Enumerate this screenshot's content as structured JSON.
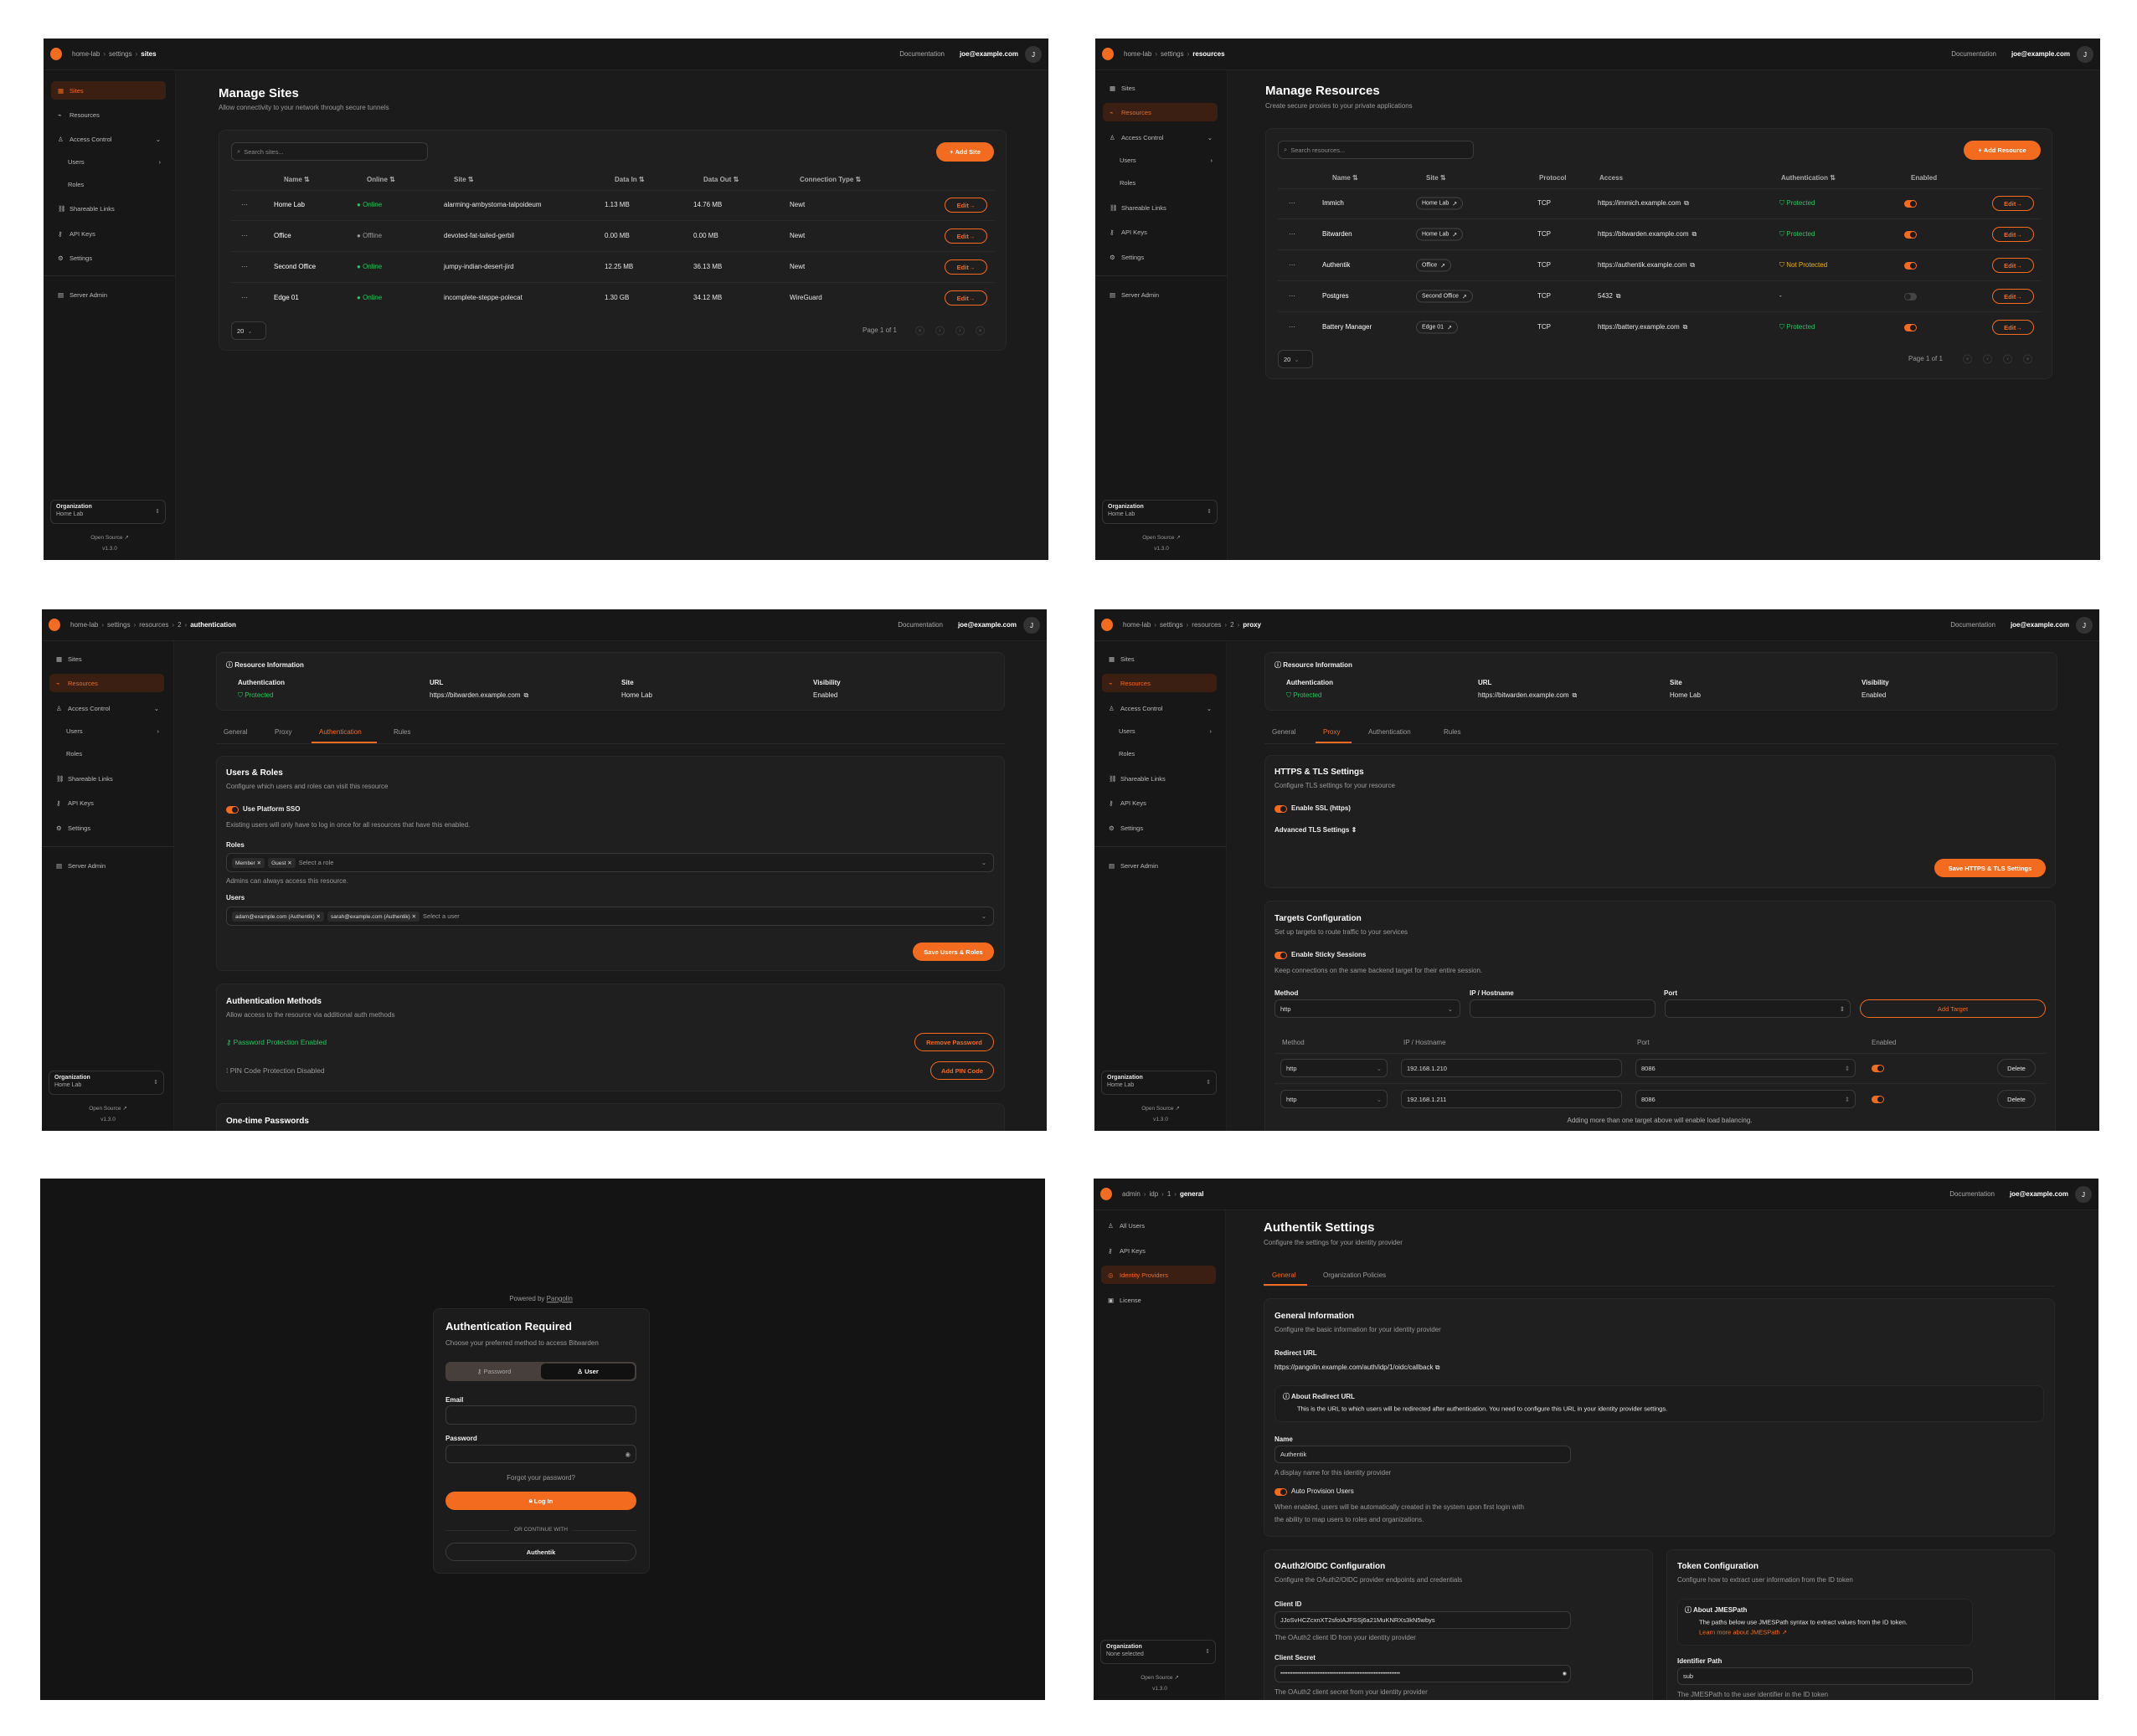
{
  "colors": {
    "accent": "#f36b1f",
    "success": "#22c55e",
    "warning": "#eab308",
    "background": "#1b1b1b"
  },
  "common": {
    "documentation": "Documentation",
    "user_email": "joe@example.com",
    "avatar_initial": "J",
    "org_label": "Organization",
    "open_source": "Open Source",
    "version": "v1.3.0",
    "edit_label": "Edit",
    "page_size": "20",
    "page_info": "Page 1 of 1"
  },
  "nav": {
    "org_items": [
      {
        "label": "Sites",
        "icon": "sites-icon"
      },
      {
        "label": "Resources",
        "icon": "resources-icon"
      },
      {
        "label": "Access Control",
        "icon": "users-icon",
        "chevron": "down"
      },
      {
        "label": "Users",
        "sub": true,
        "chevron": "right"
      },
      {
        "label": "Roles",
        "sub": true
      },
      {
        "label": "Shareable Links",
        "icon": "link-icon"
      },
      {
        "label": "API Keys",
        "icon": "key-icon"
      },
      {
        "label": "Settings",
        "icon": "gear-icon"
      },
      {
        "label": "Server Admin",
        "icon": "server-icon"
      }
    ],
    "admin_items": [
      {
        "label": "All Users",
        "icon": "users-icon"
      },
      {
        "label": "API Keys",
        "icon": "key-icon"
      },
      {
        "label": "Identity Providers",
        "icon": "fingerprint-icon"
      },
      {
        "label": "License",
        "icon": "license-icon"
      }
    ]
  },
  "sites_page": {
    "breadcrumb": [
      "home-lab",
      "settings",
      "sites"
    ],
    "title": "Manage Sites",
    "subtitle": "Allow connectivity to your network through secure tunnels",
    "search_placeholder": "Search sites...",
    "add_label": "Add Site",
    "org_name": "Home Lab",
    "columns": [
      "Name",
      "Online",
      "Site",
      "Data In",
      "Data Out",
      "Connection Type"
    ],
    "rows": [
      {
        "name": "Home Lab",
        "online": "Online",
        "site": "alarming-ambystoma-talpoideum",
        "data_in": "1.13 MB",
        "data_out": "14.76 MB",
        "type": "Newt"
      },
      {
        "name": "Office",
        "online": "Offline",
        "site": "devoted-fat-tailed-gerbil",
        "data_in": "0.00 MB",
        "data_out": "0.00 MB",
        "type": "Newt"
      },
      {
        "name": "Second Office",
        "online": "Online",
        "site": "jumpy-indian-desert-jird",
        "data_in": "12.25 MB",
        "data_out": "36.13 MB",
        "type": "Newt"
      },
      {
        "name": "Edge 01",
        "online": "Online",
        "site": "incomplete-steppe-polecat",
        "data_in": "1.30 GB",
        "data_out": "34.12 MB",
        "type": "WireGuard"
      }
    ]
  },
  "resources_page": {
    "breadcrumb": [
      "home-lab",
      "settings",
      "resources"
    ],
    "title": "Manage Resources",
    "subtitle": "Create secure proxies to your private applications",
    "search_placeholder": "Search resources...",
    "add_label": "Add Resource",
    "org_name": "Home Lab",
    "columns": [
      "Name",
      "Site",
      "Protocol",
      "Access",
      "Authentication",
      "Enabled"
    ],
    "rows": [
      {
        "name": "Immich",
        "site": "Home Lab",
        "protocol": "TCP",
        "access": "https://immich.example.com",
        "auth": "Protected",
        "auth_state": "protected",
        "enabled": true
      },
      {
        "name": "Bitwarden",
        "site": "Home Lab",
        "protocol": "TCP",
        "access": "https://bitwarden.example.com",
        "auth": "Protected",
        "auth_state": "protected",
        "enabled": true
      },
      {
        "name": "Authentik",
        "site": "Office",
        "protocol": "TCP",
        "access": "https://authentik.example.com",
        "auth": "Not Protected",
        "auth_state": "unprotected",
        "enabled": true
      },
      {
        "name": "Postgres",
        "site": "Second Office",
        "protocol": "TCP",
        "access": "5432",
        "auth": "-",
        "auth_state": "none",
        "enabled": false
      },
      {
        "name": "Battery Manager",
        "site": "Edge 01",
        "protocol": "TCP",
        "access": "https://battery.example.com",
        "auth": "Protected",
        "auth_state": "protected",
        "enabled": true
      }
    ]
  },
  "resource_info": {
    "title": "Resource Information",
    "labels": [
      "Authentication",
      "URL",
      "Site",
      "Visibility"
    ],
    "auth": "Protected",
    "url": "https://bitwarden.example.com",
    "site": "Home Lab",
    "visibility": "Enabled",
    "tabs": [
      "General",
      "Proxy",
      "Authentication",
      "Rules"
    ]
  },
  "auth_page": {
    "breadcrumb": [
      "home-lab",
      "settings",
      "resources",
      "2",
      "authentication"
    ],
    "org_name": "Home Lab",
    "users_roles": {
      "title": "Users & Roles",
      "subtitle": "Configure which users and roles can visit this resource",
      "sso_label": "Use Platform SSO",
      "sso_help": "Existing users will only have to log in once for all resources that have this enabled.",
      "roles_label": "Roles",
      "roles": [
        "Member",
        "Guest"
      ],
      "roles_placeholder": "Select a role",
      "roles_help": "Admins can always access this resource.",
      "users_label": "Users",
      "users": [
        "adam@example.com (Authentik)",
        "sarah@example.com (Authentik)"
      ],
      "users_placeholder": "Select a user",
      "save_label": "Save Users & Roles"
    },
    "methods": {
      "title": "Authentication Methods",
      "subtitle": "Allow access to the resource via additional auth methods",
      "password_status": "Password Protection Enabled",
      "remove_password": "Remove Password",
      "pin_status": "PIN Code Protection Disabled",
      "add_pin": "Add PIN Code"
    },
    "otp_title": "One-time Passwords"
  },
  "proxy_page": {
    "breadcrumb": [
      "home-lab",
      "settings",
      "resources",
      "2",
      "proxy"
    ],
    "org_name": "Home Lab",
    "tls": {
      "title": "HTTPS & TLS Settings",
      "subtitle": "Configure TLS settings for your resource",
      "ssl_label": "Enable SSL (https)",
      "advanced_label": "Advanced TLS Settings",
      "save_label": "Save HTTPS & TLS Settings"
    },
    "targets": {
      "title": "Targets Configuration",
      "subtitle": "Set up targets to route traffic to your services",
      "sticky_label": "Enable Sticky Sessions",
      "sticky_help": "Keep connections on the same backend target for their entire session.",
      "form_labels": [
        "Method",
        "IP / Hostname",
        "Port"
      ],
      "method_value": "http",
      "add_label": "Add Target",
      "columns": [
        "Method",
        "IP / Hostname",
        "Port",
        "Enabled"
      ],
      "rows": [
        {
          "method": "http",
          "ip": "192.168.1.210",
          "port": "8086",
          "enabled": true
        },
        {
          "method": "http",
          "ip": "192.168.1.211",
          "port": "8086",
          "enabled": true
        }
      ],
      "delete_label": "Delete",
      "footer": "Adding more than one target above will enable load balancing."
    }
  },
  "login_page": {
    "powered_by": "Powered by",
    "brand": "Pangolin",
    "title": "Authentication Required",
    "subtitle": "Choose your preferred method to access Bitwarden",
    "tabs": [
      "Password",
      "User"
    ],
    "active_tab": "User",
    "email_label": "Email",
    "password_label": "Password",
    "forgot": "Forgot your password?",
    "login_label": "Log In",
    "divider": "OR CONTINUE WITH",
    "idp_label": "Authentik"
  },
  "idp_page": {
    "breadcrumb": [
      "admin",
      "idp",
      "1",
      "general"
    ],
    "org_name": "None selected",
    "title": "Authentik Settings",
    "subtitle": "Configure the settings for your identity provider",
    "tabs": [
      "General",
      "Organization Policies"
    ],
    "general": {
      "title": "General Information",
      "subtitle": "Configure the basic information for your identity provider",
      "redirect_label": "Redirect URL",
      "redirect_url": "https://pangolin.example.com/auth/idp/1/oidc/callback",
      "about_title": "About Redirect URL",
      "about_text": "This is the URL to which users will be redirected after authentication. You need to configure this URL in your identity provider settings.",
      "name_label": "Name",
      "name_value": "Authentik",
      "name_help": "A display name for this identity provider",
      "auto_label": "Auto Provision Users",
      "auto_help_1": "When enabled, users will be automatically created in the system upon first login with",
      "auto_help_2": "the ability to map users to roles and organizations."
    },
    "oauth": {
      "title": "OAuth2/OIDC Configuration",
      "subtitle": "Configure the OAuth2/OIDC provider endpoints and credentials",
      "client_id_label": "Client ID",
      "client_id": "JJoSvHCZcxnXT2sfoIAJFSSj6a21MuKNRXs3kN5wbys",
      "client_id_help": "The OAuth2 client ID from your identity provider",
      "secret_label": "Client Secret",
      "secret_mask": "••••••••••••••••••••••••••••••••••••••••••••••••••••••••••••••••••••",
      "secret_help": "The OAuth2 client secret from your identity provider"
    },
    "token": {
      "title": "Token Configuration",
      "subtitle": "Configure how to extract user information from the ID token",
      "about_title": "About JMESPath",
      "about_text": "The paths below use JMESPath syntax to extract values from the ID token.",
      "about_link": "Learn more about JMESPath",
      "id_path_label": "Identifier Path",
      "id_path_value": "sub",
      "id_path_help": "The JMESPath to the user identifier in the ID token"
    }
  }
}
